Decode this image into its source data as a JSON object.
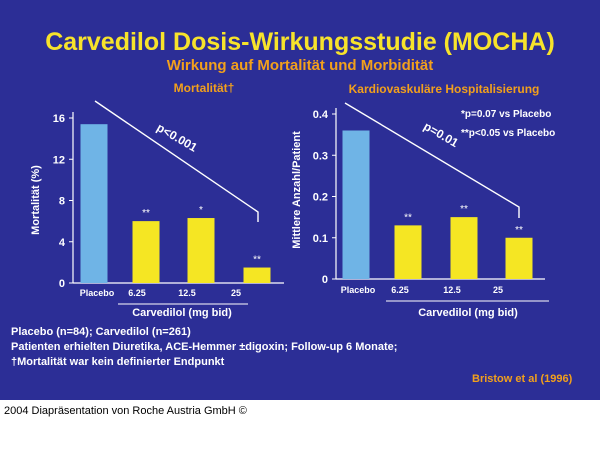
{
  "colors": {
    "background": "#2c2e96",
    "title": "#f7e32b",
    "subtitle": "#f2a01c",
    "placebo_bar": "#6fb4e6",
    "drug_bar": "#f5e623",
    "text": "#ffffff"
  },
  "slide": {
    "title": "Carvedilol Dosis-Wirkungsstudie (MOCHA)",
    "subtitle": "Wirkung auf Mortalität und Morbidität",
    "notes": [
      "Placebo (n=84); Carvedilol (n=261)",
      "Patienten erhielten Diuretika, ACE-Hemmer ±digoxin; Follow-up 6 Monate;",
      "†Mortalität war kein definierter Endpunkt"
    ],
    "citation": "Bristow et al (1996)",
    "footer": "2004 Diapräsentation von Roche Austria GmbH ©"
  },
  "chart_data": [
    {
      "type": "bar",
      "title": "Mortalität†",
      "ylabel": "Mortalität (%)",
      "xlabel": "Carvedilol (mg bid)",
      "categories": [
        "Placebo",
        "6.25",
        "12.5",
        "25"
      ],
      "values": [
        15.4,
        6.0,
        6.3,
        1.5
      ],
      "bar_labels": [
        "",
        "**",
        "*",
        "**"
      ],
      "ylim": [
        0,
        16
      ],
      "yticks": [
        0,
        4,
        8,
        12,
        16
      ],
      "ytick_labels": [
        "0",
        "4",
        "8",
        "12",
        "16"
      ],
      "annotation": "p<0.001",
      "grid": false
    },
    {
      "type": "bar",
      "title": "Kardiovaskuläre Hospitalisierung",
      "ylabel": "Mittlere Anzahl/Patient",
      "xlabel": "Carvedilol (mg bid)",
      "categories": [
        "Placebo",
        "6.25",
        "12.5",
        "25"
      ],
      "values": [
        0.36,
        0.13,
        0.15,
        0.1
      ],
      "bar_labels": [
        "",
        "**",
        "**",
        "**"
      ],
      "ylim": [
        0,
        0.4
      ],
      "yticks": [
        0,
        0.1,
        0.2,
        0.3,
        0.4
      ],
      "ytick_labels": [
        "0",
        "0.1",
        "0.2",
        "0.3",
        "0.4"
      ],
      "annotation": "p=0.01",
      "legend_notes": [
        "*p=0.07 vs Placebo",
        "**p<0.05 vs Placebo"
      ],
      "grid": false
    }
  ]
}
